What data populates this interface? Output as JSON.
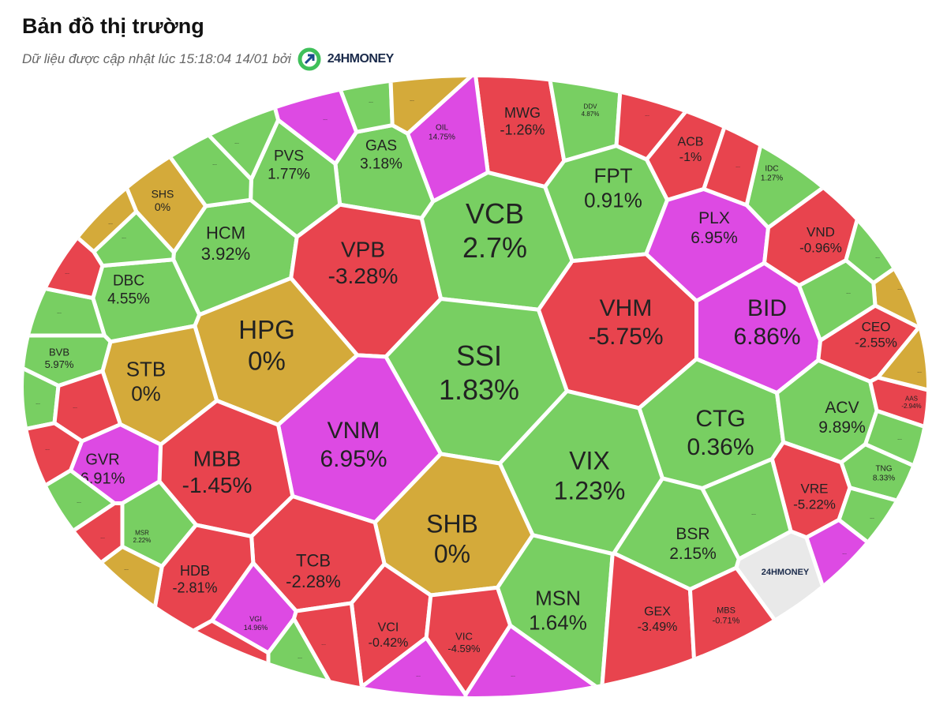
{
  "header": {
    "title": "Bản đồ thị trường",
    "subtitle": "Dữ liệu được cập nhật lúc 15:18:04 14/01 bởi",
    "brand": "24HMONEY"
  },
  "cells": [
    {
      "ticker": "MWG",
      "change": "-1.26%",
      "color": "#e8444e"
    },
    {
      "ticker": "DDV",
      "change": "4.87%",
      "color": "#78cf62"
    },
    {
      "ticker": "ACB",
      "change": "-1%",
      "color": "#e8444e"
    },
    {
      "ticker": "OIL",
      "change": "14.75%",
      "color": "#dd4ae3"
    },
    {
      "ticker": "GAS",
      "change": "3.18%",
      "color": "#78cf62"
    },
    {
      "ticker": "PVS",
      "change": "1.77%",
      "color": "#78cf62"
    },
    {
      "ticker": "SHS",
      "change": "0%",
      "color": "#d4aa3a"
    },
    {
      "ticker": "HCM",
      "change": "3.92%",
      "color": "#78cf62"
    },
    {
      "ticker": "VPB",
      "change": "-3.28%",
      "color": "#e8444e"
    },
    {
      "ticker": "VCB",
      "change": "2.7%",
      "color": "#78cf62"
    },
    {
      "ticker": "FPT",
      "change": "0.91%",
      "color": "#78cf62"
    },
    {
      "ticker": "PLX",
      "change": "6.95%",
      "color": "#dd4ae3"
    },
    {
      "ticker": "IDC",
      "change": "1.27%",
      "color": "#78cf62"
    },
    {
      "ticker": "VND",
      "change": "-0.96%",
      "color": "#e8444e"
    },
    {
      "ticker": "DBC",
      "change": "4.55%",
      "color": "#78cf62"
    },
    {
      "ticker": "HPG",
      "change": "0%",
      "color": "#d4aa3a"
    },
    {
      "ticker": "SSI",
      "change": "1.83%",
      "color": "#78cf62"
    },
    {
      "ticker": "VHM",
      "change": "-5.75%",
      "color": "#e8444e"
    },
    {
      "ticker": "BID",
      "change": "6.86%",
      "color": "#dd4ae3"
    },
    {
      "ticker": "CEO",
      "change": "-2.55%",
      "color": "#e8444e"
    },
    {
      "ticker": "BVB",
      "change": "5.97%",
      "color": "#78cf62"
    },
    {
      "ticker": "STB",
      "change": "0%",
      "color": "#d4aa3a"
    },
    {
      "ticker": "VNM",
      "change": "6.95%",
      "color": "#dd4ae3"
    },
    {
      "ticker": "CTG",
      "change": "0.36%",
      "color": "#78cf62"
    },
    {
      "ticker": "ACV",
      "change": "9.89%",
      "color": "#78cf62"
    },
    {
      "ticker": "AAS",
      "change": "-2.94%",
      "color": "#e8444e"
    },
    {
      "ticker": "GVR",
      "change": "6.91%",
      "color": "#dd4ae3"
    },
    {
      "ticker": "MBB",
      "change": "-1.45%",
      "color": "#e8444e"
    },
    {
      "ticker": "VIX",
      "change": "1.23%",
      "color": "#78cf62"
    },
    {
      "ticker": "TNG",
      "change": "8.33%",
      "color": "#78cf62"
    },
    {
      "ticker": "VRE",
      "change": "-5.22%",
      "color": "#e8444e"
    },
    {
      "ticker": "SHB",
      "change": "0%",
      "color": "#d4aa3a"
    },
    {
      "ticker": "BSR",
      "change": "2.15%",
      "color": "#78cf62"
    },
    {
      "ticker": "MSR",
      "change": "2.22%",
      "color": "#78cf62"
    },
    {
      "ticker": "TCB",
      "change": "-2.28%",
      "color": "#e8444e"
    },
    {
      "ticker": "HDB",
      "change": "-2.81%",
      "color": "#e8444e"
    },
    {
      "ticker": "MSN",
      "change": "1.64%",
      "color": "#78cf62"
    },
    {
      "ticker": "24HMONEY",
      "color": "#e9e9e9"
    },
    {
      "ticker": "GEX",
      "change": "-3.49%",
      "color": "#e8444e"
    },
    {
      "ticker": "MBS",
      "change": "-0.71%",
      "color": "#e8444e"
    },
    {
      "ticker": "VGI",
      "change": "14.96%",
      "color": "#dd4ae3"
    },
    {
      "ticker": "VCI",
      "change": "-0.42%",
      "color": "#e8444e"
    },
    {
      "ticker": "VIC",
      "change": "-4.59%",
      "color": "#e8444e"
    },
    {
      "ticker": "...",
      "color": "#dd4ae3"
    },
    {
      "ticker": "...",
      "color": "#78cf62"
    },
    {
      "ticker": "...",
      "color": "#d4aa3a"
    },
    {
      "ticker": "...",
      "color": "#78cf62"
    },
    {
      "ticker": "...",
      "color": "#78cf62"
    },
    {
      "ticker": "...",
      "color": "#d4aa3a"
    },
    {
      "ticker": "...",
      "color": "#78cf62"
    },
    {
      "ticker": "...",
      "color": "#78cf62"
    },
    {
      "ticker": "...",
      "color": "#e8444e"
    },
    {
      "ticker": "...",
      "color": "#78cf62"
    },
    {
      "ticker": "...",
      "color": "#e8444e"
    },
    {
      "ticker": "...",
      "color": "#e8444e"
    },
    {
      "ticker": "...",
      "color": "#78cf62"
    },
    {
      "ticker": "...",
      "color": "#e8444e"
    },
    {
      "ticker": "...",
      "color": "#d4aa3a"
    },
    {
      "ticker": "...",
      "color": "#78cf62"
    },
    {
      "ticker": "...",
      "color": "#d4aa3a"
    },
    {
      "ticker": "...",
      "color": "#78cf62"
    },
    {
      "ticker": "...",
      "color": "#d4aa3a"
    },
    {
      "ticker": "...",
      "color": "#78cf62"
    },
    {
      "ticker": "...",
      "color": "#78cf62"
    },
    {
      "ticker": "...",
      "color": "#dd4ae3"
    },
    {
      "ticker": "...",
      "color": "#78cf62"
    },
    {
      "ticker": "...",
      "color": "#e8444e"
    },
    {
      "ticker": "...",
      "color": "#e8444e"
    },
    {
      "ticker": "...",
      "color": "#e8444e"
    },
    {
      "ticker": "...",
      "color": "#78cf62"
    },
    {
      "ticker": "...",
      "color": "#e8444e"
    },
    {
      "ticker": "...",
      "color": "#dd4ae3"
    },
    {
      "ticker": "...",
      "color": "#dd4ae3"
    }
  ]
}
